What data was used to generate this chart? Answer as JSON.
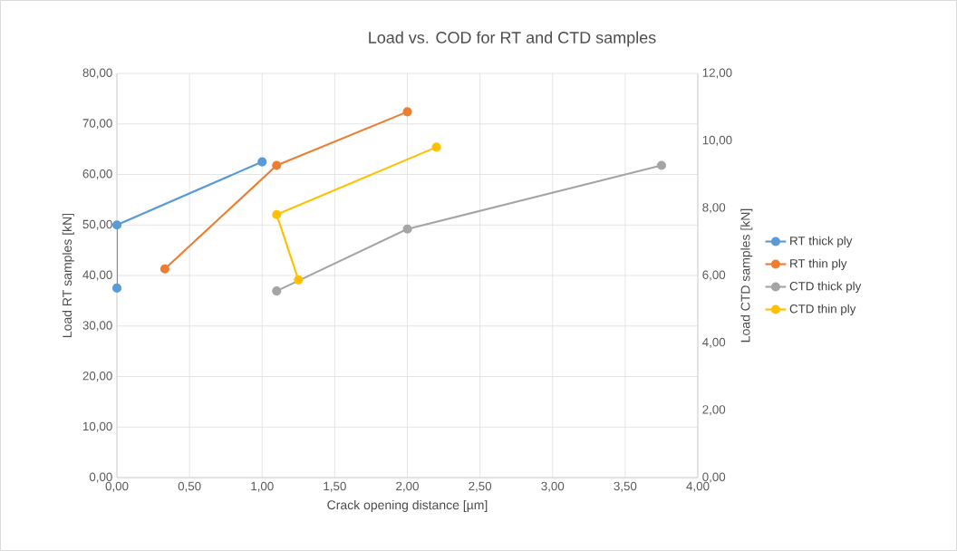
{
  "chart_data": {
    "type": "line",
    "title": "Load vs. COD for RT and CTD samples",
    "xlabel": "Crack opening distance [µm]",
    "ylabel": "Load RT samples [kN]",
    "y2label": "Load CTD samples [kN]",
    "series": [
      {
        "name": "RT thick ply",
        "color": "#5b9bd5",
        "x": [
          0,
          0,
          1.0
        ],
        "values": [
          37.5,
          50.0,
          62.5
        ]
      },
      {
        "name": "RT thin ply",
        "color": "#ed7d31",
        "x": [
          0.33,
          1.1,
          2.0
        ],
        "values": [
          41.3,
          61.8,
          72.4
        ]
      },
      {
        "name": "CTD thick ply",
        "color": "#a5a5a5",
        "axis": "y2",
        "x": [
          1.1,
          2.0,
          3.75
        ],
        "values": [
          5.54,
          7.38,
          9.27
        ]
      },
      {
        "name": "CTD thin ply",
        "color": "#ffc000",
        "axis": "y2",
        "x": [
          1.25,
          1.1,
          2.2
        ],
        "values": [
          5.87,
          7.81,
          9.81
        ]
      }
    ],
    "xlim": [
      0,
      4
    ],
    "ylim": [
      0,
      80
    ],
    "y2lim": [
      0,
      12
    ],
    "xticks": [
      {
        "value": 0,
        "label": "0,00"
      },
      {
        "value": 0.5,
        "label": "0,50"
      },
      {
        "value": 1,
        "label": "1,00"
      },
      {
        "value": 1.5,
        "label": "1,50"
      },
      {
        "value": 2,
        "label": "2,00"
      },
      {
        "value": 2.5,
        "label": "2,50"
      },
      {
        "value": 3,
        "label": "3,00"
      },
      {
        "value": 3.5,
        "label": "3,50"
      },
      {
        "value": 4,
        "label": "4,00"
      }
    ],
    "yticks": [
      {
        "value": 0,
        "label": "0,00"
      },
      {
        "value": 10,
        "label": "10,00"
      },
      {
        "value": 20,
        "label": "20,00"
      },
      {
        "value": 30,
        "label": "30,00"
      },
      {
        "value": 40,
        "label": "40,00"
      },
      {
        "value": 50,
        "label": "50,00"
      },
      {
        "value": 60,
        "label": "60,00"
      },
      {
        "value": 70,
        "label": "70,00"
      },
      {
        "value": 80,
        "label": "80,00"
      }
    ],
    "y2ticks": [
      {
        "value": 0,
        "label": "0,00"
      },
      {
        "value": 2,
        "label": "2,00"
      },
      {
        "value": 4,
        "label": "4,00"
      },
      {
        "value": 6,
        "label": "6,00"
      },
      {
        "value": 8,
        "label": "8,00"
      },
      {
        "value": 10,
        "label": "10,00"
      },
      {
        "value": 12,
        "label": "12,00"
      }
    ],
    "grid": true,
    "legend": "right",
    "marker": "circle",
    "line_style": "solid"
  }
}
